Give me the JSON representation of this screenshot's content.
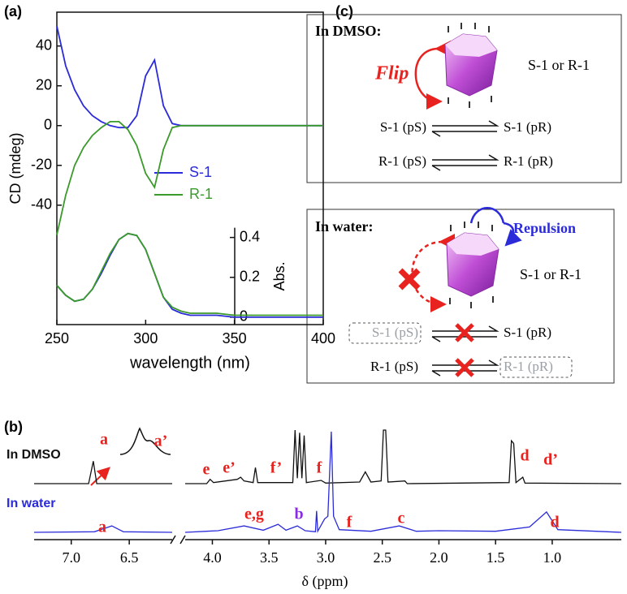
{
  "chart_data": [
    {
      "type": "line",
      "panel_label": "(a)",
      "xlabel": "wavelength (nm)",
      "ylabel": "CD (mdeg)",
      "y2label": "Abs.",
      "x": [
        250,
        255,
        260,
        265,
        270,
        275,
        280,
        285,
        290,
        295,
        300,
        305,
        310,
        315,
        320,
        325,
        330,
        340,
        350,
        360,
        370,
        380,
        390,
        400
      ],
      "series": [
        {
          "name": "S-1",
          "color": "#2b2bd9",
          "values": [
            50,
            30,
            18,
            10,
            5,
            2,
            0,
            -1,
            -1,
            5,
            25,
            33,
            10,
            1,
            0,
            0,
            0,
            0,
            0,
            0,
            0,
            0,
            0,
            0
          ]
        },
        {
          "name": "R-1",
          "color": "#3a9a2a",
          "values": [
            -55,
            -35,
            -20,
            -11,
            -5,
            -1,
            2,
            2,
            -2,
            -10,
            -24,
            -31,
            -12,
            -1,
            0,
            0,
            0,
            0,
            0,
            0,
            0,
            0,
            0,
            0
          ]
        },
        {
          "color": "#2b2bd9",
          "axis": "y2",
          "values": [
            0.16,
            0.11,
            0.08,
            0.09,
            0.14,
            0.22,
            0.31,
            0.39,
            0.42,
            0.41,
            0.34,
            0.22,
            0.1,
            0.04,
            0.02,
            0.01,
            0.01,
            0.01,
            0,
            0,
            0,
            0,
            0,
            0
          ]
        },
        {
          "color": "#3a9a2a",
          "axis": "y2",
          "values": [
            0.16,
            0.11,
            0.08,
            0.09,
            0.14,
            0.23,
            0.32,
            0.39,
            0.42,
            0.41,
            0.34,
            0.22,
            0.1,
            0.05,
            0.03,
            0.02,
            0.02,
            0.02,
            0.01,
            0.01,
            0.01,
            0.01,
            0.01,
            0.01
          ]
        }
      ],
      "xlim": [
        250,
        400
      ],
      "xticks": [
        250,
        300,
        350,
        400
      ],
      "ylim": [
        -100,
        57
      ],
      "yticks": [
        40,
        20,
        0,
        -20,
        -40
      ],
      "y2lim": [
        -0.037,
        1.53
      ],
      "y2ticks": [
        0,
        0.2,
        0.4
      ]
    },
    {
      "type": "spectrum",
      "panel_label": "(b)",
      "xlabel": "δ (ppm)",
      "xlim_segments": [
        [
          7.32,
          6.13
        ],
        [
          4.24,
          0.39
        ]
      ],
      "xticks": [
        {
          "value": 7,
          "label": "7.0"
        },
        6.5,
        {
          "value": 4,
          "label": "4.0"
        },
        3.5,
        {
          "value": 3,
          "label": "3.0"
        },
        2.5,
        {
          "value": 2,
          "label": "2.0"
        },
        1.5,
        {
          "value": 1,
          "label": "1.0"
        }
      ],
      "series": [
        {
          "name": "In DMSO",
          "color": "#111111",
          "x": [
            7.32,
            6.85,
            6.81,
            6.78,
            6.13,
            5.0,
            4.24,
            4.05,
            4.02,
            3.99,
            3.78,
            3.75,
            3.72,
            3.64,
            3.62,
            3.6,
            3.29,
            3.27,
            3.25,
            3.23,
            3.21,
            3.19,
            3.17,
            3.04,
            3.0,
            2.7,
            2.65,
            2.6,
            2.51,
            2.49,
            2.47,
            2.45,
            2.3,
            2.28,
            1.38,
            1.36,
            1.34,
            1.32,
            1.26,
            1.24,
            0.39
          ],
          "values": [
            0,
            0,
            0.42,
            0,
            0,
            null,
            0,
            0,
            0.08,
            0.02,
            0.08,
            0.12,
            0.05,
            0.02,
            0.3,
            0.02,
            0.02,
            1.0,
            0.1,
            0.95,
            0.1,
            0.9,
            0.02,
            0.06,
            0.01,
            0.03,
            0.22,
            0.03,
            0.05,
            1.0,
            1.0,
            0.03,
            0.05,
            0,
            0.02,
            0.8,
            0.75,
            0.02,
            0.12,
            0.01,
            0
          ]
        },
        {
          "name": "In water",
          "color": "#2b2bd9",
          "x": [
            7.32,
            6.8,
            6.65,
            6.55,
            6.13,
            5.0,
            4.24,
            3.95,
            3.72,
            3.55,
            3.42,
            3.35,
            3.25,
            3.18,
            3.09,
            3.08,
            3.07,
            3.01,
            2.98,
            2.95,
            2.93,
            2.88,
            2.6,
            2.35,
            2.2,
            2.0,
            1.5,
            1.2,
            1.05,
            0.95,
            0.39
          ],
          "values": [
            0,
            0.01,
            0.12,
            0.01,
            0,
            null,
            0,
            0.03,
            0.12,
            0.04,
            0.15,
            0.04,
            0.12,
            0.03,
            0.01,
            0.4,
            0.02,
            0.25,
            0.3,
            1.88,
            0.3,
            0.05,
            0.02,
            0.12,
            0.02,
            0.03,
            0.02,
            0.1,
            0.38,
            0.05,
            0
          ]
        }
      ],
      "annotations": [
        {
          "text": "a",
          "color": "#e8231f"
        },
        {
          "text": "a’",
          "color": "#e8231f"
        },
        {
          "text": "e",
          "color": "#e8231f"
        },
        {
          "text": "e’",
          "color": "#e8231f"
        },
        {
          "text": "f’",
          "color": "#e8231f"
        },
        {
          "text": "f",
          "color": "#e8231f"
        },
        {
          "text": "d",
          "color": "#e8231f"
        },
        {
          "text": "d’",
          "color": "#e8231f"
        },
        {
          "text": "a",
          "color": "#e8231f"
        },
        {
          "text": "e,g",
          "color": "#e8231f"
        },
        {
          "text": "b",
          "color": "#8a2be2"
        },
        {
          "text": "f",
          "color": "#e8231f"
        },
        {
          "text": "c",
          "color": "#e8231f"
        },
        {
          "text": "d",
          "color": "#e8231f"
        }
      ]
    }
  ],
  "scheme": {
    "panel_label": "(c)",
    "dmso": {
      "title": "In DMSO:",
      "flip": "Flip",
      "species": "S-1 or R-1",
      "equilibria": [
        {
          "left": "S-1 (pS)",
          "right": "S-1 (pR)"
        },
        {
          "left": "R-1 (pS)",
          "right": "R-1 (pR)"
        }
      ]
    },
    "water": {
      "title": "In water:",
      "repulsion": "Repulsion",
      "species": "S-1 or R-1",
      "equilibria": [
        {
          "left": "S-1 (pS)",
          "right": "S-1 (pR)"
        },
        {
          "left": "R-1 (pS)",
          "right": "R-1 (pR)"
        }
      ]
    }
  }
}
